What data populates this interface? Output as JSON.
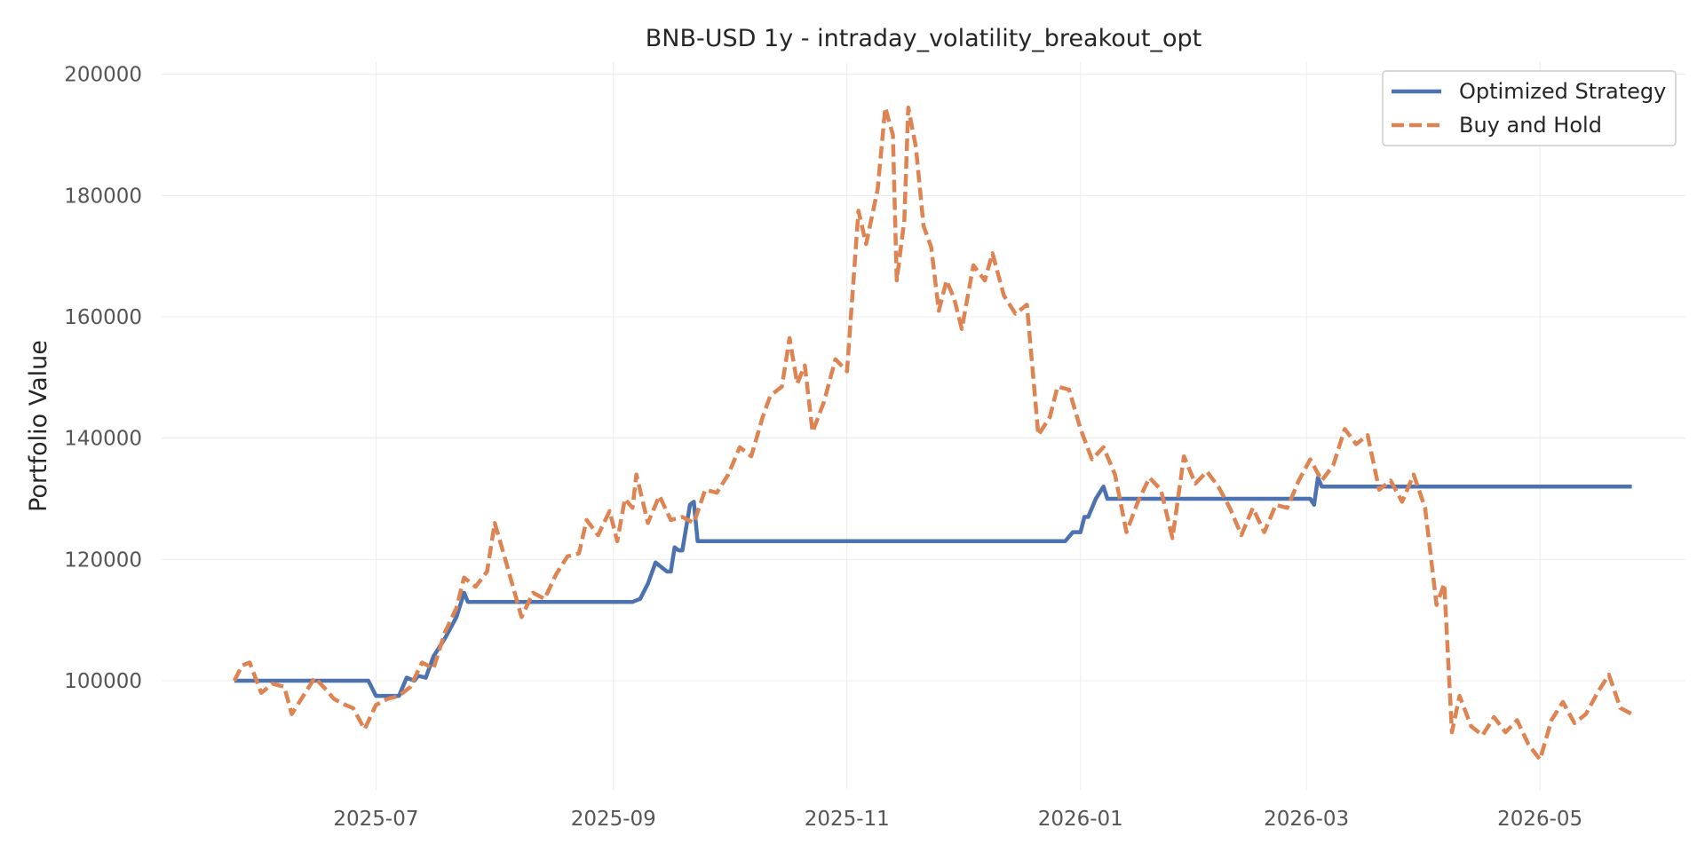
{
  "chart_data": {
    "type": "line",
    "title": "BNB-USD 1y - intraday_volatility_breakout_opt",
    "xlabel": "",
    "ylabel": "Portfolio Value",
    "x_range": [
      "2025-05-06",
      "2026-06-08"
    ],
    "ylim": [
      82000,
      202000
    ],
    "x_ticks": [
      "2025-07",
      "2025-09",
      "2025-11",
      "2026-01",
      "2026-03",
      "2026-05"
    ],
    "y_ticks": [
      100000,
      120000,
      140000,
      160000,
      180000,
      200000
    ],
    "grid": true,
    "legend": "top-right",
    "series": [
      {
        "name": "Optimized Strategy",
        "color": "#4c72b0",
        "style": "solid",
        "points": [
          [
            "2025-05-25",
            100000
          ],
          [
            "2025-06-29",
            100000
          ],
          [
            "2025-07-01",
            97500
          ],
          [
            "2025-07-07",
            97500
          ],
          [
            "2025-07-09",
            100500
          ],
          [
            "2025-07-11",
            100000
          ],
          [
            "2025-07-12",
            100800
          ],
          [
            "2025-07-14",
            100500
          ],
          [
            "2025-07-16",
            104000
          ],
          [
            "2025-07-19",
            107000
          ],
          [
            "2025-07-22",
            110500
          ],
          [
            "2025-07-24",
            114500
          ],
          [
            "2025-07-25",
            113000
          ],
          [
            "2025-09-06",
            113000
          ],
          [
            "2025-09-08",
            113500
          ],
          [
            "2025-09-10",
            116000
          ],
          [
            "2025-09-12",
            119500
          ],
          [
            "2025-09-15",
            118000
          ],
          [
            "2025-09-16",
            118000
          ],
          [
            "2025-09-17",
            122000
          ],
          [
            "2025-09-18",
            121500
          ],
          [
            "2025-09-19",
            121500
          ],
          [
            "2025-09-21",
            129000
          ],
          [
            "2025-09-22",
            129500
          ],
          [
            "2025-09-23",
            123000
          ],
          [
            "2025-12-28",
            123000
          ],
          [
            "2025-12-30",
            124500
          ],
          [
            "2026-01-01",
            124500
          ],
          [
            "2026-01-02",
            127000
          ],
          [
            "2026-01-03",
            127000
          ],
          [
            "2026-01-05",
            130000
          ],
          [
            "2026-01-07",
            132000
          ],
          [
            "2026-01-08",
            130000
          ],
          [
            "2026-03-02",
            130000
          ],
          [
            "2026-03-03",
            129000
          ],
          [
            "2026-03-04",
            133500
          ],
          [
            "2026-03-05",
            132000
          ],
          [
            "2026-05-25",
            132000
          ]
        ]
      },
      {
        "name": "Buy and Hold",
        "color": "#dd8452",
        "style": "dashed",
        "points": [
          [
            "2025-05-25",
            100000
          ],
          [
            "2025-05-27",
            102500
          ],
          [
            "2025-05-29",
            103000
          ],
          [
            "2025-06-01",
            98000
          ],
          [
            "2025-06-04",
            99500
          ],
          [
            "2025-06-07",
            99000
          ],
          [
            "2025-06-09",
            94500
          ],
          [
            "2025-06-12",
            97500
          ],
          [
            "2025-06-15",
            100500
          ],
          [
            "2025-06-18",
            98500
          ],
          [
            "2025-06-20",
            97000
          ],
          [
            "2025-06-23",
            96000
          ],
          [
            "2025-06-25",
            95500
          ],
          [
            "2025-06-28",
            92000
          ],
          [
            "2025-07-01",
            96000
          ],
          [
            "2025-07-04",
            97000
          ],
          [
            "2025-07-07",
            97500
          ],
          [
            "2025-07-10",
            99000
          ],
          [
            "2025-07-13",
            103000
          ],
          [
            "2025-07-16",
            102000
          ],
          [
            "2025-07-19",
            108000
          ],
          [
            "2025-07-22",
            112000
          ],
          [
            "2025-07-24",
            117000
          ],
          [
            "2025-07-27",
            115500
          ],
          [
            "2025-07-30",
            118000
          ],
          [
            "2025-08-01",
            126000
          ],
          [
            "2025-08-04",
            119500
          ],
          [
            "2025-08-08",
            110500
          ],
          [
            "2025-08-11",
            114500
          ],
          [
            "2025-08-14",
            113500
          ],
          [
            "2025-08-17",
            117500
          ],
          [
            "2025-08-20",
            120500
          ],
          [
            "2025-08-23",
            121000
          ],
          [
            "2025-08-25",
            126500
          ],
          [
            "2025-08-28",
            124000
          ],
          [
            "2025-08-31",
            128000
          ],
          [
            "2025-09-02",
            123000
          ],
          [
            "2025-09-04",
            130000
          ],
          [
            "2025-09-06",
            128500
          ],
          [
            "2025-09-07",
            134000
          ],
          [
            "2025-09-10",
            126000
          ],
          [
            "2025-09-13",
            130500
          ],
          [
            "2025-09-16",
            126500
          ],
          [
            "2025-09-19",
            127000
          ],
          [
            "2025-09-22",
            126000
          ],
          [
            "2025-09-25",
            131500
          ],
          [
            "2025-09-28",
            131000
          ],
          [
            "2025-10-01",
            134000
          ],
          [
            "2025-10-04",
            138500
          ],
          [
            "2025-10-07",
            137000
          ],
          [
            "2025-10-10",
            143500
          ],
          [
            "2025-10-12",
            147000
          ],
          [
            "2025-10-15",
            148500
          ],
          [
            "2025-10-17",
            156500
          ],
          [
            "2025-10-19",
            149000
          ],
          [
            "2025-10-21",
            152000
          ],
          [
            "2025-10-23",
            141000
          ],
          [
            "2025-10-26",
            146000
          ],
          [
            "2025-10-29",
            153000
          ],
          [
            "2025-11-01",
            151000
          ],
          [
            "2025-11-04",
            177500
          ],
          [
            "2025-11-06",
            172000
          ],
          [
            "2025-11-09",
            181000
          ],
          [
            "2025-11-11",
            194500
          ],
          [
            "2025-11-13",
            190000
          ],
          [
            "2025-11-14",
            166000
          ],
          [
            "2025-11-16",
            176000
          ],
          [
            "2025-11-17",
            194500
          ],
          [
            "2025-11-19",
            188000
          ],
          [
            "2025-11-21",
            175000
          ],
          [
            "2025-11-23",
            171500
          ],
          [
            "2025-11-25",
            161000
          ],
          [
            "2025-11-27",
            166000
          ],
          [
            "2025-11-29",
            163000
          ],
          [
            "2025-12-01",
            158000
          ],
          [
            "2025-12-04",
            168500
          ],
          [
            "2025-12-07",
            166000
          ],
          [
            "2025-12-09",
            170500
          ],
          [
            "2025-12-12",
            163500
          ],
          [
            "2025-12-15",
            160500
          ],
          [
            "2025-12-18",
            162000
          ],
          [
            "2025-12-21",
            140500
          ],
          [
            "2025-12-24",
            143500
          ],
          [
            "2025-12-26",
            148500
          ],
          [
            "2025-12-29",
            148000
          ],
          [
            "2026-01-01",
            141500
          ],
          [
            "2026-01-04",
            136500
          ],
          [
            "2026-01-07",
            138500
          ],
          [
            "2026-01-10",
            134000
          ],
          [
            "2026-01-13",
            124500
          ],
          [
            "2026-01-16",
            129500
          ],
          [
            "2026-01-19",
            133500
          ],
          [
            "2026-01-22",
            131500
          ],
          [
            "2026-01-25",
            123500
          ],
          [
            "2026-01-28",
            137000
          ],
          [
            "2026-01-31",
            132500
          ],
          [
            "2026-02-03",
            134500
          ],
          [
            "2026-02-06",
            132000
          ],
          [
            "2026-02-09",
            128500
          ],
          [
            "2026-02-12",
            124000
          ],
          [
            "2026-02-15",
            128500
          ],
          [
            "2026-02-18",
            124500
          ],
          [
            "2026-02-21",
            129000
          ],
          [
            "2026-02-24",
            128500
          ],
          [
            "2026-02-27",
            133000
          ],
          [
            "2026-03-02",
            136500
          ],
          [
            "2026-03-05",
            133000
          ],
          [
            "2026-03-08",
            135500
          ],
          [
            "2026-03-11",
            141500
          ],
          [
            "2026-03-14",
            139000
          ],
          [
            "2026-03-17",
            140500
          ],
          [
            "2026-03-20",
            131500
          ],
          [
            "2026-03-23",
            133000
          ],
          [
            "2026-03-26",
            129500
          ],
          [
            "2026-03-29",
            134000
          ],
          [
            "2026-04-01",
            128500
          ],
          [
            "2026-04-04",
            112500
          ],
          [
            "2026-04-06",
            116000
          ],
          [
            "2026-04-08",
            91500
          ],
          [
            "2026-04-10",
            97500
          ],
          [
            "2026-04-13",
            92500
          ],
          [
            "2026-04-16",
            91000
          ],
          [
            "2026-04-19",
            94000
          ],
          [
            "2026-04-22",
            91500
          ],
          [
            "2026-04-25",
            93500
          ],
          [
            "2026-04-28",
            89500
          ],
          [
            "2026-05-01",
            87000
          ],
          [
            "2026-05-04",
            93500
          ],
          [
            "2026-05-07",
            96500
          ],
          [
            "2026-05-10",
            93000
          ],
          [
            "2026-05-13",
            94500
          ],
          [
            "2026-05-16",
            98000
          ],
          [
            "2026-05-19",
            101000
          ],
          [
            "2026-05-22",
            95500
          ],
          [
            "2026-05-25",
            94500
          ]
        ]
      }
    ]
  }
}
